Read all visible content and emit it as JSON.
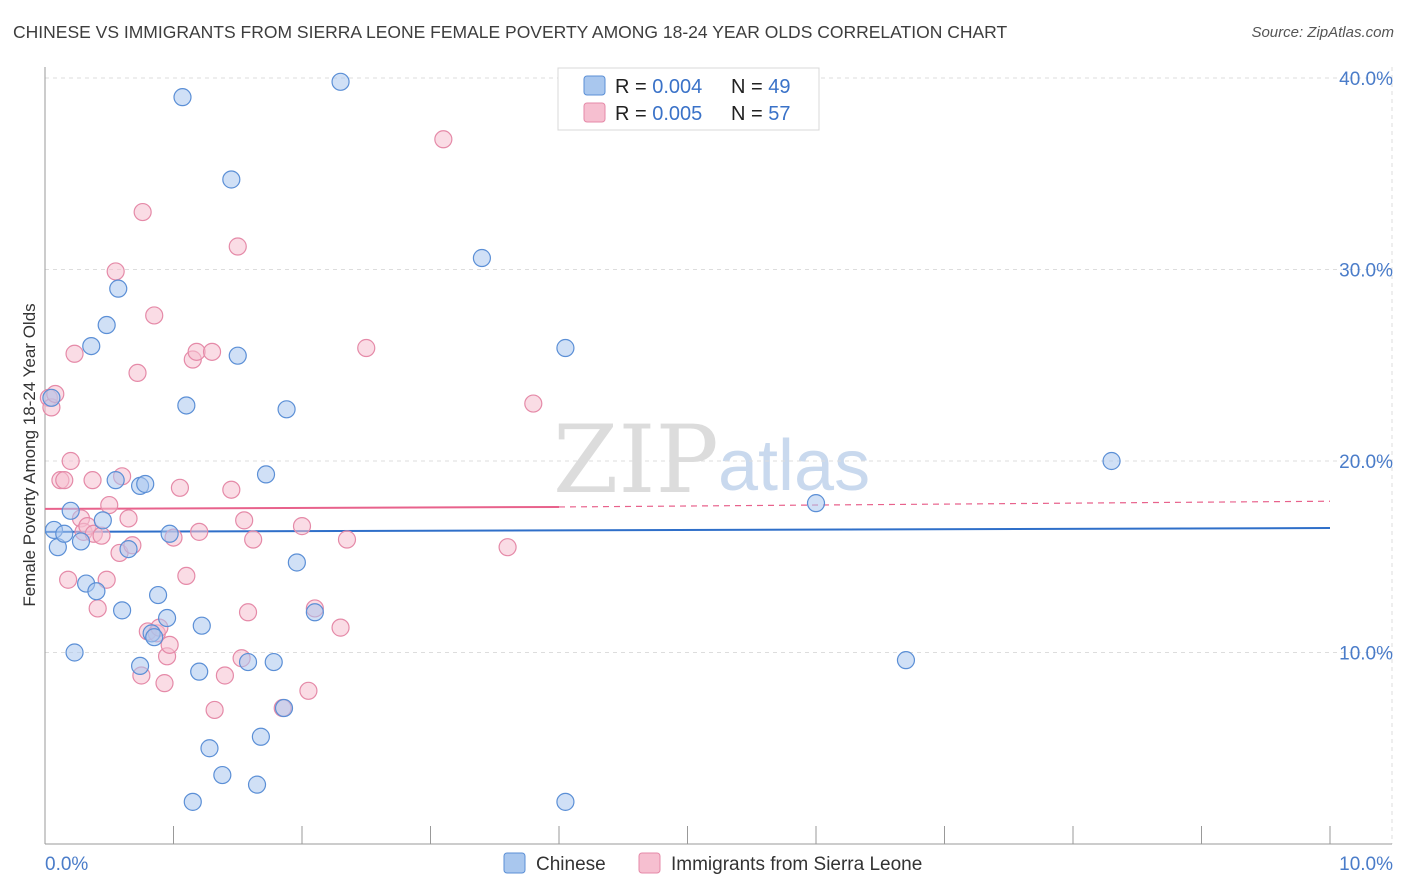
{
  "title": "CHINESE VS IMMIGRANTS FROM SIERRA LEONE FEMALE POVERTY AMONG 18-24 YEAR OLDS CORRELATION CHART",
  "source": "Source: ZipAtlas.com",
  "watermark": {
    "zip": "ZIP",
    "atlas": "atlas"
  },
  "colors": {
    "chinese_fill": "#a9c7ee",
    "chinese_stroke": "#5b8fd6",
    "chinese_line": "#2f6fc9",
    "sl_fill": "#f6bfd0",
    "sl_stroke": "#e58aa8",
    "sl_line": "#e8628c",
    "axis_text": "#4a7cc9",
    "grid": "#dddddd"
  },
  "legend": {
    "rows": [
      {
        "r_label": "R = ",
        "r_value": "0.004",
        "n_label": "N = ",
        "n_value": "49"
      },
      {
        "r_label": "R = ",
        "r_value": "0.005",
        "n_label": "N = ",
        "n_value": "57"
      }
    ]
  },
  "bottom_legend": [
    "Chinese",
    "Immigrants from Sierra Leone"
  ],
  "chart_data": {
    "type": "scatter",
    "title": "CHINESE VS IMMIGRANTS FROM SIERRA LEONE FEMALE POVERTY AMONG 18-24 YEAR OLDS CORRELATION CHART",
    "xlabel": "",
    "ylabel": "Female Poverty Among 18-24 Year Olds",
    "xlim": [
      0,
      10
    ],
    "ylim": [
      0,
      40
    ],
    "x_tick_labels": [
      "0.0%",
      "10.0%"
    ],
    "y_ticks": [
      10,
      20,
      30,
      40
    ],
    "y_tick_labels": [
      "10.0%",
      "20.0%",
      "30.0%",
      "40.0%"
    ],
    "grid": true,
    "series": [
      {
        "name": "Chinese",
        "R": 0.004,
        "N": 49,
        "trend": {
          "x": [
            0,
            10
          ],
          "y": [
            16.3,
            16.5
          ]
        },
        "points": [
          [
            0.05,
            23.3
          ],
          [
            0.07,
            16.4
          ],
          [
            0.1,
            15.5
          ],
          [
            0.15,
            16.2
          ],
          [
            0.2,
            17.4
          ],
          [
            0.23,
            10.0
          ],
          [
            0.28,
            15.8
          ],
          [
            0.32,
            13.6
          ],
          [
            0.36,
            26.0
          ],
          [
            0.4,
            13.2
          ],
          [
            0.45,
            16.9
          ],
          [
            0.48,
            27.1
          ],
          [
            0.55,
            19.0
          ],
          [
            0.57,
            29.0
          ],
          [
            0.6,
            12.2
          ],
          [
            0.65,
            15.4
          ],
          [
            0.74,
            18.7
          ],
          [
            0.78,
            18.8
          ],
          [
            0.83,
            11.0
          ],
          [
            0.88,
            13.0
          ],
          [
            0.95,
            11.8
          ],
          [
            0.97,
            16.2
          ],
          [
            1.07,
            39.0
          ],
          [
            1.1,
            22.9
          ],
          [
            1.15,
            2.2
          ],
          [
            1.2,
            9.0
          ],
          [
            1.22,
            11.4
          ],
          [
            1.28,
            5.0
          ],
          [
            1.38,
            3.6
          ],
          [
            1.45,
            34.7
          ],
          [
            1.5,
            25.5
          ],
          [
            1.58,
            9.5
          ],
          [
            1.68,
            5.6
          ],
          [
            1.65,
            3.1
          ],
          [
            1.72,
            19.3
          ],
          [
            1.78,
            9.5
          ],
          [
            1.86,
            7.1
          ],
          [
            1.88,
            22.7
          ],
          [
            1.96,
            14.7
          ],
          [
            2.1,
            12.1
          ],
          [
            2.3,
            39.8
          ],
          [
            3.4,
            30.6
          ],
          [
            4.05,
            25.9
          ],
          [
            4.05,
            2.2
          ],
          [
            6.0,
            17.8
          ],
          [
            6.7,
            9.6
          ],
          [
            8.3,
            20.0
          ],
          [
            0.74,
            9.3
          ],
          [
            0.85,
            10.8
          ]
        ]
      },
      {
        "name": "Immigrants from Sierra Leone",
        "R": 0.005,
        "N": 57,
        "trend": {
          "x": [
            0,
            4.0
          ],
          "y": [
            17.5,
            17.6
          ],
          "dashed_to": [
            10,
            17.9
          ]
        },
        "points": [
          [
            0.03,
            23.3
          ],
          [
            0.05,
            22.8
          ],
          [
            0.08,
            23.5
          ],
          [
            0.12,
            19.0
          ],
          [
            0.15,
            19.0
          ],
          [
            0.18,
            13.8
          ],
          [
            0.2,
            20.0
          ],
          [
            0.23,
            25.6
          ],
          [
            0.28,
            17.0
          ],
          [
            0.3,
            16.3
          ],
          [
            0.33,
            16.6
          ],
          [
            0.37,
            19.0
          ],
          [
            0.38,
            16.2
          ],
          [
            0.41,
            12.3
          ],
          [
            0.44,
            16.1
          ],
          [
            0.48,
            13.8
          ],
          [
            0.5,
            17.7
          ],
          [
            0.55,
            29.9
          ],
          [
            0.58,
            15.2
          ],
          [
            0.6,
            19.2
          ],
          [
            0.65,
            17.0
          ],
          [
            0.68,
            15.6
          ],
          [
            0.72,
            24.6
          ],
          [
            0.75,
            8.8
          ],
          [
            0.76,
            33.0
          ],
          [
            0.8,
            11.1
          ],
          [
            0.85,
            27.6
          ],
          [
            0.87,
            11.0
          ],
          [
            0.89,
            11.3
          ],
          [
            0.93,
            8.4
          ],
          [
            0.95,
            9.8
          ],
          [
            0.97,
            10.4
          ],
          [
            1.0,
            16.0
          ],
          [
            1.05,
            18.6
          ],
          [
            1.1,
            14.0
          ],
          [
            1.15,
            25.3
          ],
          [
            1.18,
            25.7
          ],
          [
            1.2,
            16.3
          ],
          [
            1.3,
            25.7
          ],
          [
            1.32,
            7.0
          ],
          [
            1.4,
            8.8
          ],
          [
            1.45,
            18.5
          ],
          [
            1.5,
            31.2
          ],
          [
            1.53,
            9.7
          ],
          [
            1.55,
            16.9
          ],
          [
            1.58,
            12.1
          ],
          [
            1.62,
            15.9
          ],
          [
            1.85,
            7.1
          ],
          [
            2.0,
            16.6
          ],
          [
            2.05,
            8.0
          ],
          [
            2.1,
            12.3
          ],
          [
            2.3,
            11.3
          ],
          [
            2.35,
            15.9
          ],
          [
            2.5,
            25.9
          ],
          [
            3.1,
            36.8
          ],
          [
            3.6,
            15.5
          ],
          [
            3.8,
            23.0
          ]
        ]
      }
    ]
  }
}
